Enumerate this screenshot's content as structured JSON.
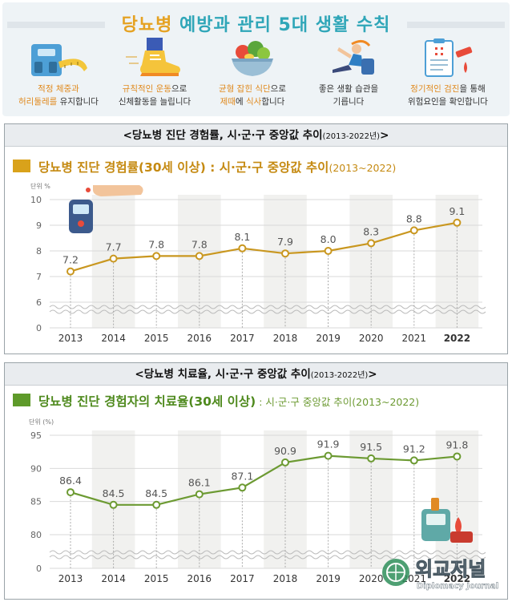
{
  "banner": {
    "title_part1": "당뇨병",
    "title_part2": "예방과 관리 5대 생활 수칙",
    "tips": [
      {
        "icon": "scale-tape-icon",
        "line1_hl": "적정 체중과",
        "line2_hl": "허리둘레를",
        "line2_rest": " 유지합니다"
      },
      {
        "icon": "running-shoe-icon",
        "line1_hl": "규칙적인 운동",
        "line1_rest": "으로",
        "line2_rest": "신체활동을 늘립니다"
      },
      {
        "icon": "salad-bowl-icon",
        "line1_hl": "균형 잡힌 식단",
        "line1_rest": "으로",
        "line2_hl": "제때",
        "line2_mid": "에 ",
        "line2_hl2": "식사",
        "line2_rest": "합니다"
      },
      {
        "icon": "stretching-person-icon",
        "line1_rest": "좋은 생활 습관을",
        "line2_rest": "기릅니다"
      },
      {
        "icon": "medical-checkup-icon",
        "line1_hl": "정기적인 검진",
        "line1_rest": "을 통해",
        "line2_rest": "위험요인을 확인합니다"
      }
    ]
  },
  "panel1": {
    "header_main": "<당뇨병 진단 경험률, 시·군·구 중앙값 추이",
    "header_small": "(2013-2022년)",
    "header_end": ">",
    "title_main": "당뇨병 진단 경험률(30세 이상) : 시·군·구 중앙값 추이",
    "title_sub": "(2013~2022)",
    "unit": "단위 %"
  },
  "panel2": {
    "header_main": "<당뇨병 치료율, 시·군·구 중앙값 추이",
    "header_small": "(2013-2022년)",
    "header_end": ">",
    "title_main": "당뇨병 진단 경험자의 치료율(30세 이상)",
    "title_sub": " : 시·군·구 중앙값 추이(2013~2022)",
    "unit": "단위 (%)"
  },
  "colors": {
    "gold": "#d9a21b",
    "gold_line": "#c9971f",
    "green": "#5e9a2a",
    "green_line": "#6c9a32",
    "orange_text": "#e08a1e",
    "teal": "#2fa6b8"
  },
  "watermark": {
    "main": "외교저널",
    "sub": "Diplomacy Journal"
  },
  "chart_data": [
    {
      "type": "line",
      "title": "당뇨병 진단 경험률(30세 이상) : 시·군·구 중앙값 추이(2013~2022)",
      "ylabel": "단위 %",
      "x": [
        "2013",
        "2014",
        "2015",
        "2016",
        "2017",
        "2018",
        "2019",
        "2020",
        "2021",
        "2022"
      ],
      "values": [
        7.2,
        7.7,
        7.8,
        7.8,
        8.1,
        7.9,
        8.0,
        8.3,
        8.8,
        9.1
      ],
      "value_labels": [
        "7.2",
        "7.7",
        "7.8",
        "7.8",
        "8.1",
        "7.9",
        "8.0",
        "8.3",
        "8.8",
        "9.1"
      ],
      "yticks": [
        "0",
        "6",
        "7",
        "8",
        "9",
        "10"
      ],
      "ylim": [
        6,
        10
      ],
      "axis_break": true,
      "grid": true
    },
    {
      "type": "line",
      "title": "당뇨병 진단 경험자의 치료율(30세 이상) : 시·군·구 중앙값 추이(2013~2022)",
      "ylabel": "단위 (%)",
      "x": [
        "2013",
        "2014",
        "2015",
        "2016",
        "2017",
        "2018",
        "2019",
        "2020",
        "2021",
        "2022"
      ],
      "values": [
        86.4,
        84.5,
        84.5,
        86.1,
        87.1,
        90.9,
        91.9,
        91.5,
        91.2,
        91.8
      ],
      "value_labels": [
        "86.4",
        "84.5",
        "84.5",
        "86.1",
        "87.1",
        "90.9",
        "91.9",
        "91.5",
        "91.2",
        "91.8"
      ],
      "yticks": [
        "0",
        "80",
        "85",
        "90",
        "95"
      ],
      "ylim": [
        80,
        95
      ],
      "axis_break": true,
      "grid": true
    }
  ]
}
